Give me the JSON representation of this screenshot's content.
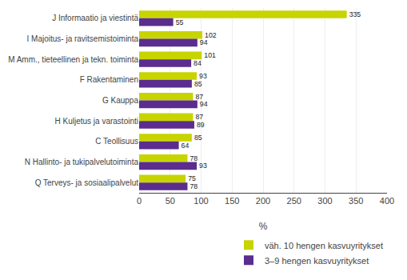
{
  "chart_data": {
    "type": "bar",
    "orientation": "horizontal",
    "categories": [
      "J Informaatio ja viestintä",
      "I Majoitus- ja ravitsemistoiminta",
      "M Amm., tieteellinen ja tekn. toiminta",
      "F Rakentaminen",
      "G Kauppa",
      "H Kuljetus ja varastointi",
      "C Teollisuus",
      "N Hallinto- ja tukipalvelutoiminta",
      "Q Terveys- ja sosiaalipalvelut"
    ],
    "series": [
      {
        "name": "väh. 10 hengen kasvuyritykset",
        "color": "#c8d400",
        "values": [
          335,
          102,
          101,
          93,
          87,
          87,
          85,
          78,
          75
        ]
      },
      {
        "name": "3–9 hengen kasvuyritykset",
        "color": "#5b2d8e",
        "values": [
          55,
          94,
          84,
          85,
          94,
          89,
          64,
          93,
          78
        ]
      }
    ],
    "xlabel": "%",
    "xlim": [
      0,
      400
    ],
    "xticks": [
      0,
      50,
      100,
      150,
      200,
      250,
      300,
      350,
      400
    ],
    "grid": true,
    "legend": "bottom",
    "data_labels": true
  }
}
